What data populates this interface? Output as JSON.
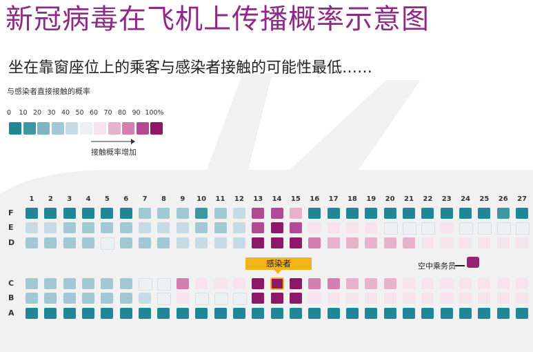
{
  "title": "新冠病毒在飞机上传播概率示意图",
  "subtitle": "坐在靠窗座位上的乘客与感染者接触的可能性最低……",
  "legend": {
    "title": "与感染者直接接触的概率",
    "ticks": [
      "0",
      "10",
      "20",
      "30",
      "40",
      "50",
      "60",
      "70",
      "80",
      "90",
      "100%"
    ],
    "colors": [
      "#1f8795",
      "#3f97a4",
      "#7fb4c2",
      "#a2c8d4",
      "#c6dbe3",
      "#edf1f4",
      "#f7e3ec",
      "#e8b2cb",
      "#d57fb0",
      "#b24a93",
      "#8d1868"
    ],
    "arrow_label": "接触概率增加"
  },
  "labels": {
    "infected": "感染者",
    "crew": "空中乘务员"
  },
  "seat_map": {
    "columns": [
      "1",
      "2",
      "3",
      "4",
      "5",
      "6",
      "7",
      "8",
      "9",
      "10",
      "11",
      "12",
      "13",
      "14",
      "15",
      "16",
      "17",
      "18",
      "19",
      "20",
      "21",
      "22",
      "23",
      "24",
      "25",
      "26",
      "27"
    ],
    "letters": [
      "F",
      "E",
      "D",
      "C",
      "B",
      "A"
    ],
    "levels": {
      "F": [
        0,
        0,
        0,
        0,
        0,
        0,
        3,
        3,
        3,
        1,
        3,
        4,
        9,
        9,
        7,
        0,
        0,
        0,
        0,
        0,
        0,
        0,
        0,
        0,
        0,
        1,
        0
      ],
      "E": [
        4,
        4,
        3,
        3,
        3,
        3,
        4,
        4,
        4,
        3,
        3,
        4,
        9,
        10,
        9,
        6,
        6,
        6,
        6,
        5,
        5,
        5,
        6,
        5,
        5,
        5,
        5
      ],
      "D": [
        3,
        3,
        3,
        3,
        5,
        3,
        3,
        3,
        4,
        4,
        4,
        4,
        10,
        10,
        10,
        8,
        7,
        7,
        7,
        7,
        7,
        6,
        6,
        6,
        6,
        6,
        6
      ],
      "C": [
        3,
        3,
        3,
        3,
        3,
        3,
        5,
        5,
        8,
        6,
        6,
        6,
        10,
        10,
        10,
        8,
        8,
        7,
        7,
        7,
        6,
        6,
        6,
        6,
        6,
        6,
        6
      ],
      "B": [
        3,
        3,
        3,
        3,
        3,
        3,
        4,
        5,
        6,
        5,
        5,
        5,
        10,
        10,
        10,
        6,
        6,
        6,
        6,
        6,
        6,
        6,
        6,
        6,
        6,
        6,
        6
      ],
      "A": [
        0,
        0,
        0,
        0,
        0,
        0,
        0,
        0,
        0,
        0,
        0,
        0,
        0,
        0,
        0,
        0,
        0,
        0,
        0,
        0,
        0,
        0,
        0,
        0,
        0,
        0,
        0
      ]
    },
    "infected_seat": {
      "column": "14",
      "letter": "C"
    }
  }
}
